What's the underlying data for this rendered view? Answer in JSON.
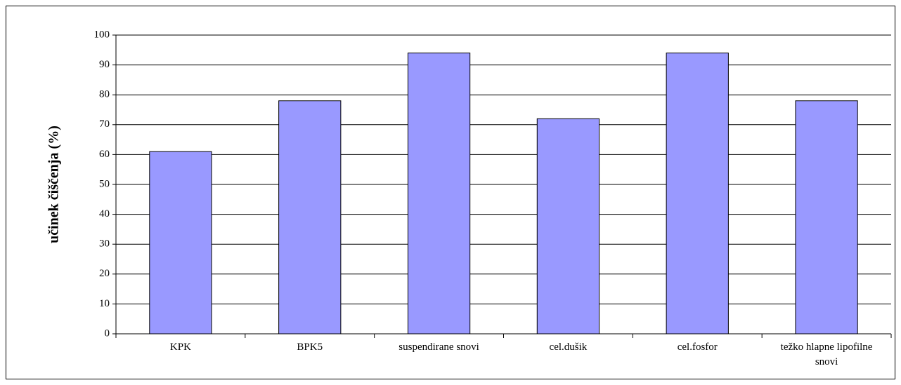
{
  "chart_data": {
    "type": "bar",
    "y_label": "učinek čiščenja (%)",
    "categories": [
      "KPK",
      "BPK5",
      "suspendirane snovi",
      "cel.dušik",
      "cel.fosfor",
      "težko hlapne lipofilne snovi"
    ],
    "values": [
      61,
      78,
      94,
      72,
      94,
      78
    ],
    "color": "#9999ff",
    "ylim": [
      0,
      100
    ],
    "yticks": [
      0,
      10,
      20,
      30,
      40,
      50,
      60,
      70,
      80,
      90,
      100
    ],
    "grid": true
  }
}
